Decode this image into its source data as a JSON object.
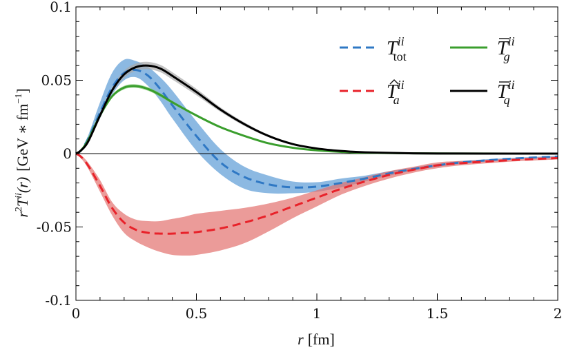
{
  "chart_data": {
    "type": "line",
    "xlabel": {
      "var": "r",
      "unit": "[fm]"
    },
    "ylabel": {
      "var": "r",
      "sup": "2",
      "func": "T",
      "func_sup": "ii",
      "arg": "(r)",
      "unit_open": "[GeV",
      "op": "∗",
      "unit_mid": "fm",
      "unit_exp": "−1",
      "unit_close": "]"
    },
    "xlim": [
      0,
      2
    ],
    "ylim": [
      -0.1,
      0.1
    ],
    "xticks": [
      0,
      0.5,
      1,
      1.5,
      2
    ],
    "xtick_labels": [
      "0",
      "0.5",
      "1",
      "1.5",
      "2"
    ],
    "yticks": [
      -0.1,
      -0.05,
      0,
      0.05,
      0.1
    ],
    "ytick_labels": [
      "-0.1",
      "-0.05",
      "0",
      "0.05",
      "0.1"
    ],
    "zero_line": true,
    "legend_position": "top-right",
    "series": [
      {
        "name": "T_tot^ii",
        "base": "T",
        "accent": "",
        "sup": "ii",
        "sub": "tot",
        "color": "#2f78c4",
        "band_color": "#5b9bd5",
        "dash": true,
        "x": [
          0,
          0.02,
          0.05,
          0.1,
          0.15,
          0.2,
          0.25,
          0.3,
          0.35,
          0.4,
          0.5,
          0.6,
          0.7,
          0.8,
          0.9,
          1.0,
          1.1,
          1.2,
          1.3,
          1.4,
          1.5,
          1.6,
          1.8,
          2.0
        ],
        "y": [
          0,
          0.002,
          0.01,
          0.028,
          0.045,
          0.055,
          0.057,
          0.053,
          0.044,
          0.033,
          0.012,
          -0.006,
          -0.016,
          -0.021,
          -0.023,
          -0.0225,
          -0.02,
          -0.017,
          -0.0135,
          -0.0105,
          -0.008,
          -0.006,
          -0.0035,
          -0.002
        ],
        "y_lo": [
          0,
          0.0015,
          0.008,
          0.024,
          0.04,
          0.05,
          0.052,
          0.046,
          0.036,
          0.024,
          0.002,
          -0.014,
          -0.024,
          -0.027,
          -0.027,
          -0.026,
          -0.023,
          -0.019,
          -0.015,
          -0.0115,
          -0.009,
          -0.007,
          -0.004,
          -0.0025
        ],
        "y_hi": [
          0,
          0.0025,
          0.012,
          0.035,
          0.055,
          0.064,
          0.063,
          0.059,
          0.052,
          0.043,
          0.022,
          0.003,
          -0.009,
          -0.015,
          -0.019,
          -0.0195,
          -0.017,
          -0.015,
          -0.012,
          -0.0095,
          -0.007,
          -0.005,
          -0.003,
          -0.0015
        ]
      },
      {
        "name": "T̂_a^ii",
        "base": "T",
        "accent": "hat",
        "sup": "ii",
        "sub": "a",
        "color": "#e8222a",
        "band_color": "#e3706d",
        "dash": true,
        "x": [
          0,
          0.02,
          0.05,
          0.1,
          0.15,
          0.2,
          0.25,
          0.3,
          0.35,
          0.4,
          0.45,
          0.5,
          0.6,
          0.7,
          0.8,
          0.9,
          1.0,
          1.1,
          1.2,
          1.3,
          1.4,
          1.5,
          1.6,
          1.8,
          2.0
        ],
        "y": [
          0,
          -0.002,
          -0.008,
          -0.022,
          -0.037,
          -0.047,
          -0.052,
          -0.054,
          -0.0545,
          -0.0545,
          -0.054,
          -0.0535,
          -0.051,
          -0.047,
          -0.042,
          -0.036,
          -0.03,
          -0.024,
          -0.019,
          -0.0145,
          -0.011,
          -0.008,
          -0.0065,
          -0.0045,
          -0.003
        ],
        "y_lo": [
          0,
          -0.003,
          -0.01,
          -0.026,
          -0.042,
          -0.054,
          -0.06,
          -0.064,
          -0.067,
          -0.069,
          -0.0695,
          -0.069,
          -0.066,
          -0.061,
          -0.053,
          -0.044,
          -0.036,
          -0.028,
          -0.022,
          -0.017,
          -0.013,
          -0.01,
          -0.008,
          -0.0055,
          -0.004
        ],
        "y_hi": [
          0,
          -0.001,
          -0.006,
          -0.018,
          -0.033,
          -0.041,
          -0.045,
          -0.046,
          -0.046,
          -0.0445,
          -0.043,
          -0.041,
          -0.039,
          -0.037,
          -0.034,
          -0.03,
          -0.025,
          -0.02,
          -0.016,
          -0.012,
          -0.009,
          -0.006,
          -0.005,
          -0.0035,
          -0.002
        ]
      },
      {
        "name": "T̄_g^ii",
        "base": "T",
        "accent": "bar",
        "sup": "ii",
        "sub": "g",
        "color": "#3a9e2d",
        "band_color": "#7ec870",
        "dash": false,
        "x": [
          0,
          0.02,
          0.05,
          0.1,
          0.15,
          0.2,
          0.25,
          0.3,
          0.35,
          0.4,
          0.5,
          0.6,
          0.7,
          0.8,
          0.9,
          1.0,
          1.1,
          1.2,
          1.4,
          1.6,
          1.8,
          2.0
        ],
        "y": [
          0,
          0.002,
          0.009,
          0.026,
          0.039,
          0.045,
          0.046,
          0.044,
          0.04,
          0.035,
          0.026,
          0.018,
          0.012,
          0.007,
          0.004,
          0.0022,
          0.0012,
          0.0006,
          0.0002,
          6e-05,
          2e-05,
          0
        ],
        "y_lo": [
          0,
          0.0018,
          0.0083,
          0.025,
          0.038,
          0.0438,
          0.0448,
          0.0428,
          0.0388,
          0.034,
          0.0252,
          0.0174,
          0.0116,
          0.0067,
          0.0038,
          0.0021,
          0.0011,
          0.0005,
          0.00015,
          4e-05,
          1e-05,
          0
        ],
        "y_hi": [
          0,
          0.0022,
          0.0097,
          0.027,
          0.04,
          0.0462,
          0.0472,
          0.0452,
          0.0412,
          0.036,
          0.0268,
          0.0186,
          0.0124,
          0.0073,
          0.0042,
          0.0023,
          0.0013,
          0.0007,
          0.00025,
          8e-05,
          3e-05,
          0
        ]
      },
      {
        "name": "T̄_q^ii",
        "base": "T",
        "accent": "bar",
        "sup": "ii",
        "sub": "q",
        "color": "#000000",
        "band_color": "#a9a9a9",
        "dash": false,
        "x": [
          0,
          0.02,
          0.05,
          0.1,
          0.15,
          0.2,
          0.25,
          0.3,
          0.35,
          0.4,
          0.5,
          0.6,
          0.7,
          0.8,
          0.9,
          1.0,
          1.1,
          1.2,
          1.4,
          1.6,
          1.8,
          2.0
        ],
        "y": [
          0,
          0.002,
          0.008,
          0.026,
          0.043,
          0.054,
          0.059,
          0.06,
          0.058,
          0.053,
          0.042,
          0.03,
          0.02,
          0.012,
          0.0065,
          0.0035,
          0.0018,
          0.0009,
          0.0002,
          5e-05,
          1e-05,
          0
        ],
        "y_lo": [
          0,
          0.0017,
          0.0072,
          0.024,
          0.041,
          0.0515,
          0.0565,
          0.0575,
          0.0555,
          0.0505,
          0.0398,
          0.0285,
          0.0188,
          0.0112,
          0.006,
          0.0032,
          0.0016,
          0.0008,
          0.00015,
          3e-05,
          1e-05,
          0
        ],
        "y_hi": [
          0,
          0.0023,
          0.0088,
          0.028,
          0.045,
          0.0565,
          0.0615,
          0.0625,
          0.0605,
          0.0555,
          0.0442,
          0.0315,
          0.0212,
          0.0128,
          0.007,
          0.0038,
          0.002,
          0.001,
          0.00025,
          7e-05,
          2e-05,
          0
        ]
      }
    ]
  }
}
